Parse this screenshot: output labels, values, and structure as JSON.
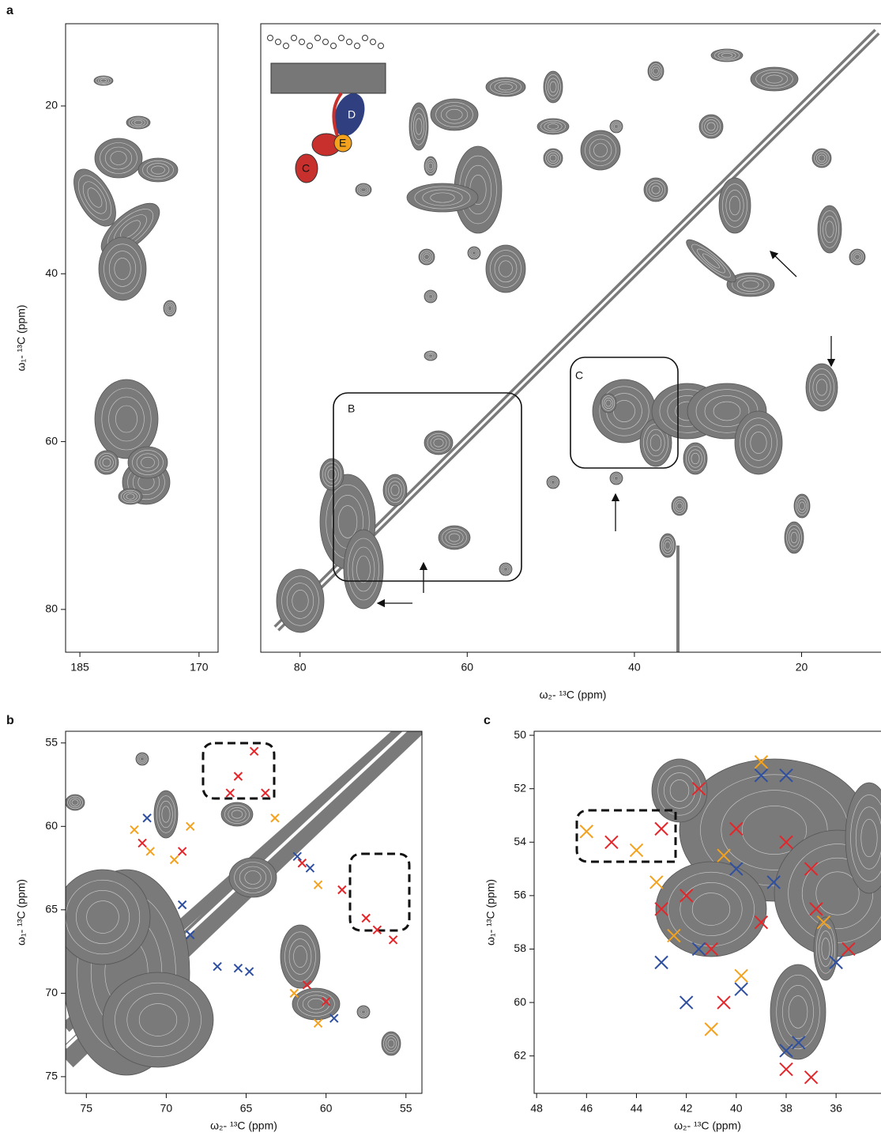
{
  "chart_data": [
    {
      "type": "contour",
      "panel_label": "a",
      "y_label": "ω₁- ¹³C (ppm)",
      "xlim": [
        186.8,
        167.6
      ],
      "ylim": [
        10.2,
        85.1
      ],
      "xticks": [
        185,
        170
      ],
      "yticks": [
        20,
        40,
        60,
        80
      ]
    },
    {
      "type": "contour",
      "x_label": "ω₂- ¹³C (ppm)",
      "xlim": [
        84.7,
        10.5
      ],
      "ylim": [
        10.2,
        85.1
      ],
      "xticks": [
        80,
        60,
        40,
        20
      ],
      "annotations": [
        "B",
        "C"
      ],
      "cartoon_labels": [
        "D",
        "E",
        "C"
      ]
    },
    {
      "type": "scatter",
      "panel_label": "b",
      "x_label": "ω₂- ¹³C (ppm)",
      "y_label": "ω₁- ¹³C (ppm)",
      "xlim": [
        76.3,
        54.0
      ],
      "ylim": [
        54.3,
        76.0
      ],
      "xticks": [
        75,
        70,
        65,
        60,
        55
      ],
      "yticks": [
        55,
        60,
        65,
        70,
        75
      ],
      "series": [
        {
          "color": "#e3262a",
          "x": [
            64.5,
            65.5,
            63.8,
            61.5,
            59,
            57.5,
            55.8,
            69,
            61.2,
            60,
            71.5,
            66,
            56.8
          ],
          "y": [
            55.5,
            57,
            58,
            62.2,
            63.8,
            65.5,
            66.8,
            61.5,
            69.5,
            70.5,
            61,
            58,
            66.2
          ]
        },
        {
          "color": "#f4a21d",
          "x": [
            72,
            69.5,
            68.5,
            63.2,
            60.5,
            62,
            60.5,
            71
          ],
          "y": [
            60.2,
            62,
            60,
            59.5,
            63.5,
            70,
            71.8,
            61.5
          ]
        },
        {
          "color": "#2f4fa0",
          "x": [
            71.2,
            69,
            68.5,
            66.8,
            65.5,
            64.8,
            61.8,
            59.5,
            61
          ],
          "y": [
            59.5,
            64.7,
            66.5,
            68.4,
            68.5,
            68.7,
            61.8,
            71.5,
            62.5
          ]
        }
      ]
    },
    {
      "type": "scatter",
      "panel_label": "c",
      "x_label": "ω₂- ¹³C (ppm)",
      "y_label": "ω₁- ¹³C (ppm)",
      "xlim": [
        48.1,
        34.2
      ],
      "ylim": [
        49.85,
        63.4
      ],
      "xticks": [
        48,
        46,
        44,
        42,
        40,
        38,
        36
      ],
      "yticks": [
        50,
        52,
        54,
        56,
        58,
        60,
        62
      ],
      "series": [
        {
          "color": "#e3262a",
          "x": [
            43,
            45,
            41.5,
            40,
            38,
            42,
            41,
            39,
            37,
            38,
            37,
            35.5,
            36.8,
            43,
            40.5
          ],
          "y": [
            53.5,
            54,
            52,
            53.5,
            54,
            56,
            58,
            57,
            55,
            62.5,
            62.8,
            58,
            56.5,
            56.5,
            60
          ]
        },
        {
          "color": "#f4a21d",
          "x": [
            46,
            44,
            39,
            40.5,
            42.5,
            41,
            36.5,
            39.8,
            43.2
          ],
          "y": [
            53.6,
            54.3,
            51,
            54.5,
            57.5,
            61,
            57,
            59,
            55.5
          ]
        },
        {
          "color": "#2f4fa0",
          "x": [
            39,
            38,
            41.5,
            43,
            42,
            38,
            37.5,
            36,
            40,
            39.8,
            38.5
          ],
          "y": [
            51.5,
            51.5,
            58,
            58.5,
            60,
            61.8,
            61.5,
            58.5,
            55,
            59.5,
            55.5
          ]
        }
      ]
    }
  ]
}
